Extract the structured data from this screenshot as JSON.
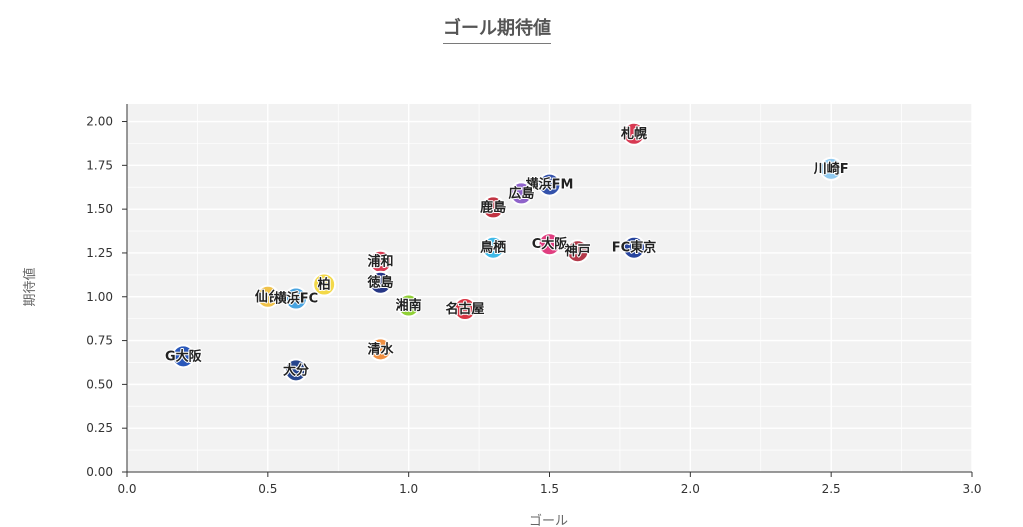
{
  "chart_data": {
    "type": "scatter",
    "title": "ゴール期待値",
    "xlabel": "ゴール",
    "ylabel": "期待値",
    "xlim": [
      0,
      3
    ],
    "ylim": [
      0,
      2.1
    ],
    "x_ticks": [
      "0.0",
      "0.5",
      "1.0",
      "1.5",
      "2.0",
      "2.5",
      "3.0"
    ],
    "y_ticks": [
      "0.00",
      "0.25",
      "0.50",
      "0.75",
      "1.00",
      "1.25",
      "1.50",
      "1.75",
      "2.00"
    ],
    "grid": true,
    "points": [
      {
        "label": "札幌",
        "x": 1.8,
        "y": 1.93,
        "color": "#d6304a"
      },
      {
        "label": "川崎F",
        "x": 2.5,
        "y": 1.73,
        "color": "#8cc8f0"
      },
      {
        "label": "横浜FM",
        "x": 1.5,
        "y": 1.64,
        "color": "#2a4aa8"
      },
      {
        "label": "広島",
        "x": 1.4,
        "y": 1.59,
        "color": "#8a5cc8"
      },
      {
        "label": "鹿島",
        "x": 1.3,
        "y": 1.51,
        "color": "#c02a3a"
      },
      {
        "label": "鳥栖",
        "x": 1.3,
        "y": 1.28,
        "color": "#38b8e8"
      },
      {
        "label": "C大阪",
        "x": 1.5,
        "y": 1.3,
        "color": "#e0357a"
      },
      {
        "label": "神戸",
        "x": 1.6,
        "y": 1.26,
        "color": "#b03040"
      },
      {
        "label": "FC東京",
        "x": 1.8,
        "y": 1.28,
        "color": "#1e3c9a"
      },
      {
        "label": "浦和",
        "x": 0.9,
        "y": 1.2,
        "color": "#d8304a"
      },
      {
        "label": "徳島",
        "x": 0.9,
        "y": 1.08,
        "color": "#1c2c80"
      },
      {
        "label": "柏",
        "x": 0.7,
        "y": 1.07,
        "color": "#f4d840"
      },
      {
        "label": "仙台",
        "x": 0.5,
        "y": 1.0,
        "color": "#f0c040"
      },
      {
        "label": "横浜FC",
        "x": 0.6,
        "y": 0.99,
        "color": "#40a0e0"
      },
      {
        "label": "湘南",
        "x": 1.0,
        "y": 0.95,
        "color": "#8ccf2c"
      },
      {
        "label": "名古屋",
        "x": 1.2,
        "y": 0.93,
        "color": "#d82a3a"
      },
      {
        "label": "G大阪",
        "x": 0.2,
        "y": 0.66,
        "color": "#2050b8"
      },
      {
        "label": "清水",
        "x": 0.9,
        "y": 0.7,
        "color": "#f08a38"
      },
      {
        "label": "大分",
        "x": 0.6,
        "y": 0.58,
        "color": "#1c3c88"
      }
    ]
  }
}
